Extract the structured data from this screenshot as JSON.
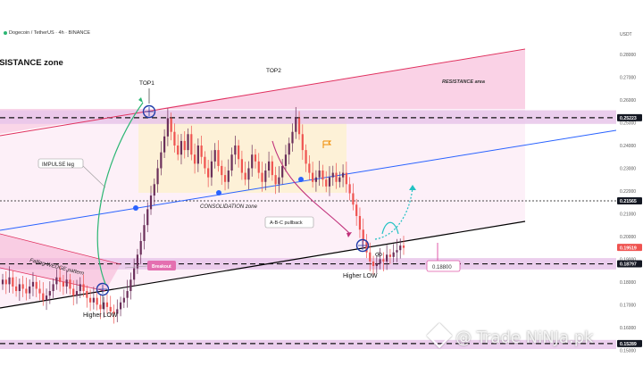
{
  "header": {
    "symbol": "Dogecoin / TetherUS · 4h · BINANCE",
    "currency": "USDT"
  },
  "colors": {
    "bull": "#26a69a",
    "bear": "#ef5350",
    "bull_body": "#6b2f5a",
    "resistance_fill": "#f8c8e0",
    "zone_fill": "#e7c6ea",
    "consolidation_fill": "#fdf0d5",
    "trend_blue": "#2962ff",
    "trend_red": "#e0305e",
    "cyan": "#22c1c3",
    "pink_label": "#e05aa8"
  },
  "annotations": {
    "resistance_zone": "RESISTANCE zone",
    "resistance_area": "RESISTANCE area",
    "top1": "TOP1",
    "top2": "TOP2",
    "impulse": "IMPULSE leg",
    "consolidation": "CONSOLIDATION zone",
    "abc": "A-B-C pullback",
    "wedge": "Falling WEDGE pattern",
    "breakout": "Breakout",
    "higher_low_1": "Higher LOW",
    "higher_low_2": "Higher LOW",
    "target_label": "0.18800"
  },
  "watermark": "@ Trade NiNJa.pk",
  "chart_data": {
    "type": "candlestick",
    "title": "Dogecoin / TetherUS · 4h · BINANCE",
    "ylabel": "USDT",
    "ylim": [
      0.145,
      0.293
    ],
    "y_ticks": [
      0.28,
      0.27,
      0.26,
      0.25,
      0.24,
      0.23,
      0.22,
      0.21,
      0.2,
      0.19,
      0.18,
      0.17,
      0.16,
      0.15
    ],
    "y_tick_labels": [
      "0.28000",
      "0.27000",
      "0.26000",
      "0.25000",
      "0.24000",
      "0.23000",
      "0.22000",
      "0.21000",
      "0.20000",
      "0.19000",
      "0.18000",
      "0.17000",
      "0.16000",
      "0.15000"
    ],
    "price_levels": [
      {
        "label": "0.25223",
        "value": 0.25223,
        "style": "dashed"
      },
      {
        "label": "0.21565",
        "value": 0.21565,
        "style": "dotted"
      },
      {
        "label": "0.19519",
        "value": 0.19519,
        "style": "current"
      },
      {
        "label": "0.18797",
        "value": 0.18797,
        "style": "dashed"
      },
      {
        "label": "0.15289",
        "value": 0.15289,
        "style": "dashed"
      }
    ],
    "zones": [
      {
        "name": "resistance",
        "from": 0.2495,
        "to": 0.2555
      },
      {
        "name": "support",
        "from": 0.1855,
        "to": 0.1905
      },
      {
        "name": "base",
        "from": 0.1505,
        "to": 0.1545
      }
    ],
    "series": [
      {
        "name": "wedge",
        "close": [
          0.181,
          0.179,
          0.182,
          0.178,
          0.176,
          0.179,
          0.177,
          0.175,
          0.178,
          0.18,
          0.177,
          0.175,
          0.172,
          0.174,
          0.176,
          0.179,
          0.182,
          0.18,
          0.178,
          0.181,
          0.177,
          0.174,
          0.176,
          0.179,
          0.176,
          0.173,
          0.171,
          0.173,
          0.17,
          0.168,
          0.171,
          0.169,
          0.167,
          0.166,
          0.168,
          0.171,
          0.173,
          0.176
        ]
      },
      {
        "name": "impulse",
        "close": [
          0.181,
          0.186,
          0.192,
          0.198,
          0.205,
          0.212,
          0.218,
          0.223,
          0.23,
          0.237,
          0.244,
          0.252,
          0.246,
          0.24,
          0.236
        ]
      },
      {
        "name": "consolidation",
        "close": [
          0.242,
          0.238,
          0.245,
          0.236,
          0.232,
          0.24,
          0.235,
          0.23,
          0.226,
          0.233,
          0.238,
          0.231,
          0.227,
          0.224,
          0.229,
          0.236,
          0.24,
          0.234,
          0.228,
          0.225,
          0.23,
          0.236,
          0.233,
          0.228,
          0.224,
          0.229,
          0.233,
          0.227,
          0.223,
          0.226,
          0.231,
          0.236,
          0.241,
          0.246,
          0.252,
          0.245,
          0.238,
          0.232,
          0.228,
          0.224,
          0.226,
          0.229,
          0.225,
          0.222,
          0.226,
          0.228,
          0.224
        ]
      },
      {
        "name": "pullback",
        "close": [
          0.226,
          0.228,
          0.223,
          0.219,
          0.214,
          0.209,
          0.203,
          0.198,
          0.193,
          0.189,
          0.187,
          0.188,
          0.19,
          0.189,
          0.192,
          0.191,
          0.193,
          0.194,
          0.196,
          0.195
        ]
      }
    ]
  }
}
